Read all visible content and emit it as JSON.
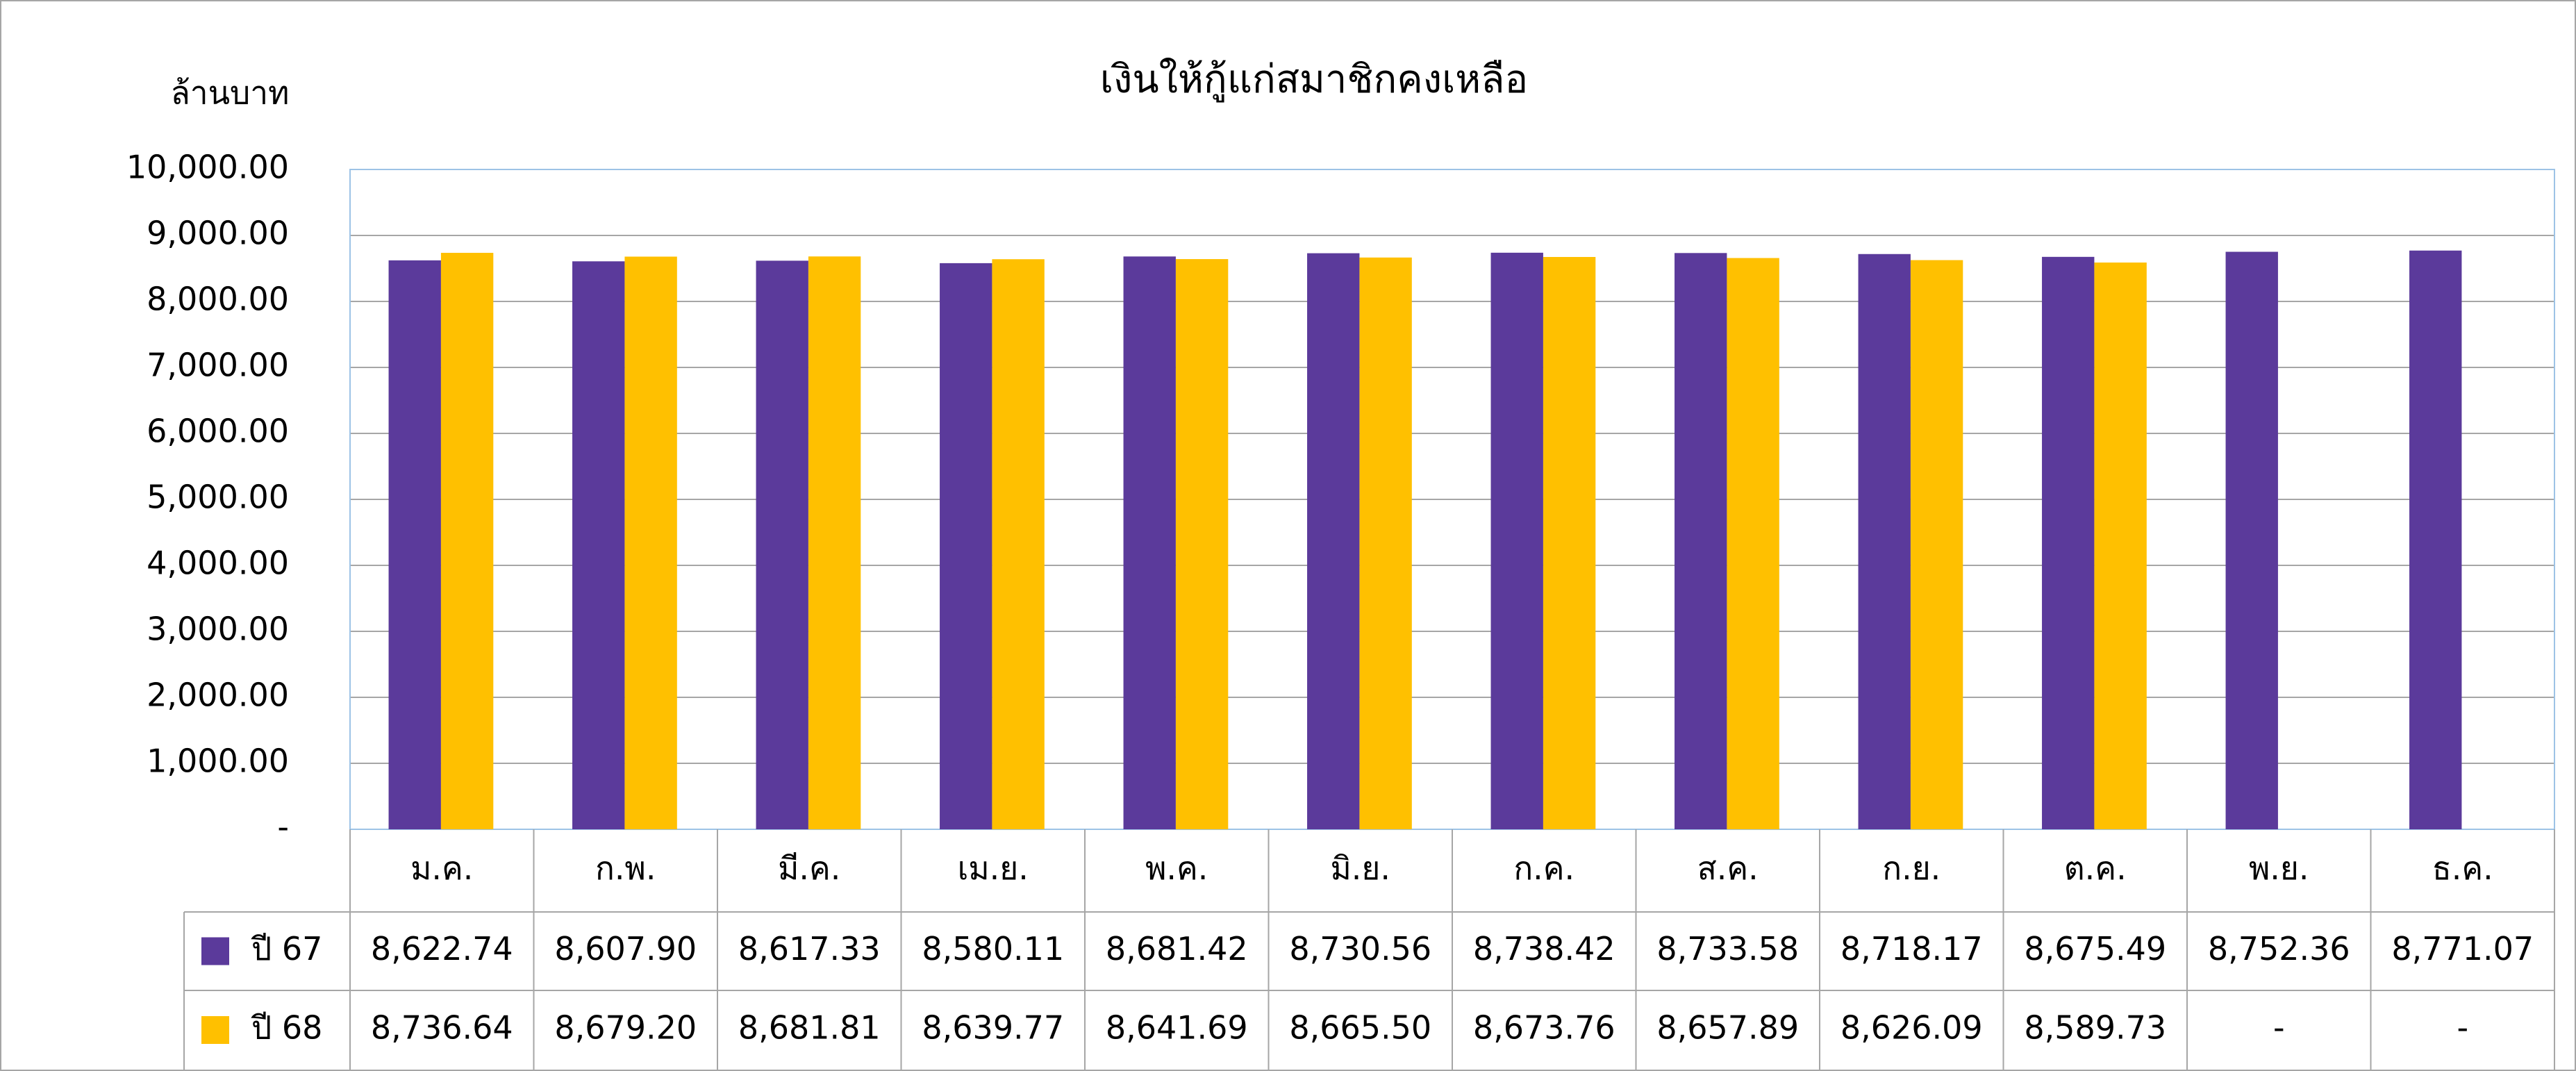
{
  "chart_data": {
    "type": "bar",
    "title": "เงินให้กู้แก่สมาชิกคงเหลือ",
    "y_label": "ล้านบาท",
    "categories": [
      "ม.ค.",
      "ก.พ.",
      "มี.ค.",
      "เม.ย.",
      "พ.ค.",
      "มิ.ย.",
      "ก.ค.",
      "ส.ค.",
      "ก.ย.",
      "ต.ค.",
      "พ.ย.",
      "ธ.ค."
    ],
    "series": [
      {
        "name": "ปี 67",
        "color": "#5b3a9b",
        "values": [
          8622.74,
          8607.9,
          8617.33,
          8580.11,
          8681.42,
          8730.56,
          8738.42,
          8733.58,
          8718.17,
          8675.49,
          8752.36,
          8771.07
        ],
        "value_labels": [
          "8,622.74",
          "8,607.90",
          "8,617.33",
          "8,580.11",
          "8,681.42",
          "8,730.56",
          "8,738.42",
          "8,733.58",
          "8,718.17",
          "8,675.49",
          "8,752.36",
          "8,771.07"
        ]
      },
      {
        "name": "ปี 68",
        "color": "#ffc000",
        "values": [
          8736.64,
          8679.2,
          8681.81,
          8639.77,
          8641.69,
          8665.5,
          8673.76,
          8657.89,
          8626.09,
          8589.73,
          null,
          null
        ],
        "value_labels": [
          "8,736.64",
          "8,679.20",
          "8,681.81",
          "8,639.77",
          "8,641.69",
          "8,665.50",
          "8,673.76",
          "8,657.89",
          "8,626.09",
          "8,589.73",
          "-",
          "-"
        ]
      }
    ],
    "ylim": [
      0,
      10000
    ],
    "yticks": [
      {
        "value": 0,
        "label": "-"
      },
      {
        "value": 1000,
        "label": "1,000.00"
      },
      {
        "value": 2000,
        "label": "2,000.00"
      },
      {
        "value": 3000,
        "label": "3,000.00"
      },
      {
        "value": 4000,
        "label": "4,000.00"
      },
      {
        "value": 5000,
        "label": "5,000.00"
      },
      {
        "value": 6000,
        "label": "6,000.00"
      },
      {
        "value": 7000,
        "label": "7,000.00"
      },
      {
        "value": 8000,
        "label": "8,000.00"
      },
      {
        "value": 9000,
        "label": "9,000.00"
      },
      {
        "value": 10000,
        "label": "10,000.00"
      }
    ],
    "grid": true
  }
}
